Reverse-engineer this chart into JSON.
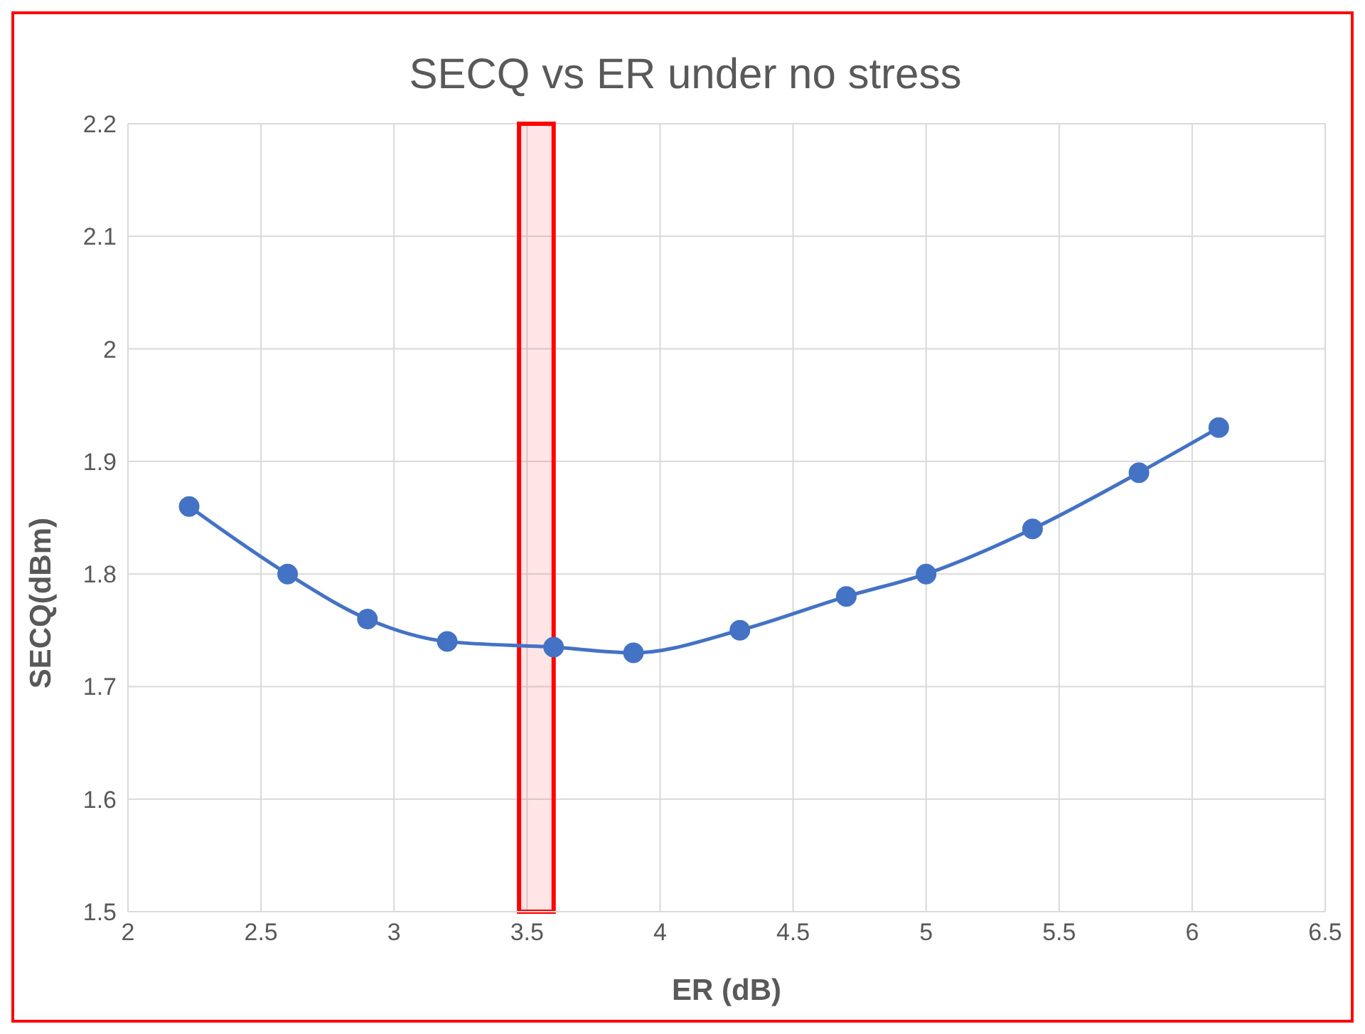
{
  "chart_data": {
    "type": "line",
    "title": "SECQ vs ER under no stress",
    "xlabel": "ER (dB)",
    "ylabel": "SECQ(dBm)",
    "x": [
      2.23,
      2.6,
      2.9,
      3.2,
      3.6,
      3.9,
      4.3,
      4.7,
      5.0,
      5.4,
      5.8,
      6.1
    ],
    "series": [
      {
        "color": "#4472c4",
        "values": [
          1.86,
          1.8,
          1.76,
          1.74,
          1.735,
          1.73,
          1.75,
          1.78,
          1.8,
          1.84,
          1.89,
          1.93
        ]
      }
    ],
    "xlim": [
      2,
      6.5
    ],
    "xticks": [
      2,
      2.5,
      3,
      3.5,
      4,
      4.5,
      5,
      5.5,
      6,
      6.5
    ],
    "ylim": [
      1.5,
      2.2
    ],
    "yticks": [
      1.5,
      1.6,
      1.7,
      1.8,
      1.9,
      2,
      2.1,
      2.2
    ],
    "bands": [
      {
        "axis": "x",
        "from": 3.47,
        "to": 3.6,
        "color": "#ff0000"
      }
    ],
    "grid": true,
    "legend": false,
    "marker": "circle",
    "line_style": "solid"
  }
}
